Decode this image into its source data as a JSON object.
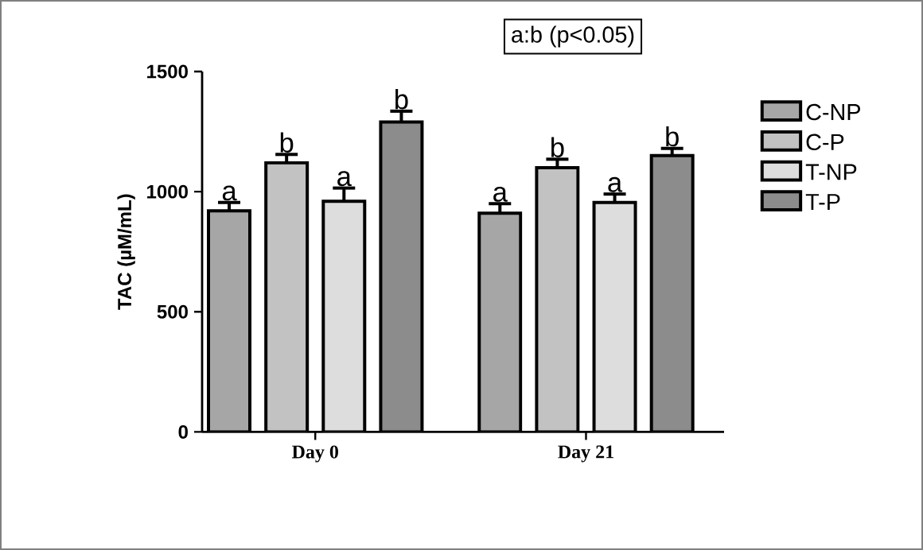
{
  "chart_data": {
    "type": "bar",
    "ylabel": "TAC (µM/mL)",
    "categories": [
      "Day 0",
      "Day 21"
    ],
    "series": [
      {
        "name": "C-NP",
        "color": "#a6a6a6",
        "values": [
          920,
          910
        ],
        "errors": [
          35,
          40
        ],
        "value_labels": [
          "a",
          "a"
        ]
      },
      {
        "name": "C-P",
        "color": "#c2c2c2",
        "values": [
          1120,
          1100
        ],
        "errors": [
          35,
          35
        ],
        "value_labels": [
          "b",
          "b"
        ]
      },
      {
        "name": "T-NP",
        "color": "#dddddd",
        "values": [
          960,
          955
        ],
        "errors": [
          55,
          35
        ],
        "value_labels": [
          "a",
          "a"
        ]
      },
      {
        "name": "T-P",
        "color": "#8c8c8c",
        "values": [
          1290,
          1150
        ],
        "errors": [
          45,
          30
        ],
        "value_labels": [
          "b",
          "b"
        ]
      }
    ],
    "ylim": [
      0,
      1500
    ],
    "yticks": [
      0,
      500,
      1000,
      1500
    ],
    "grid": false,
    "legend": "right",
    "annotations": [
      "a:b (p<0.05)"
    ]
  }
}
